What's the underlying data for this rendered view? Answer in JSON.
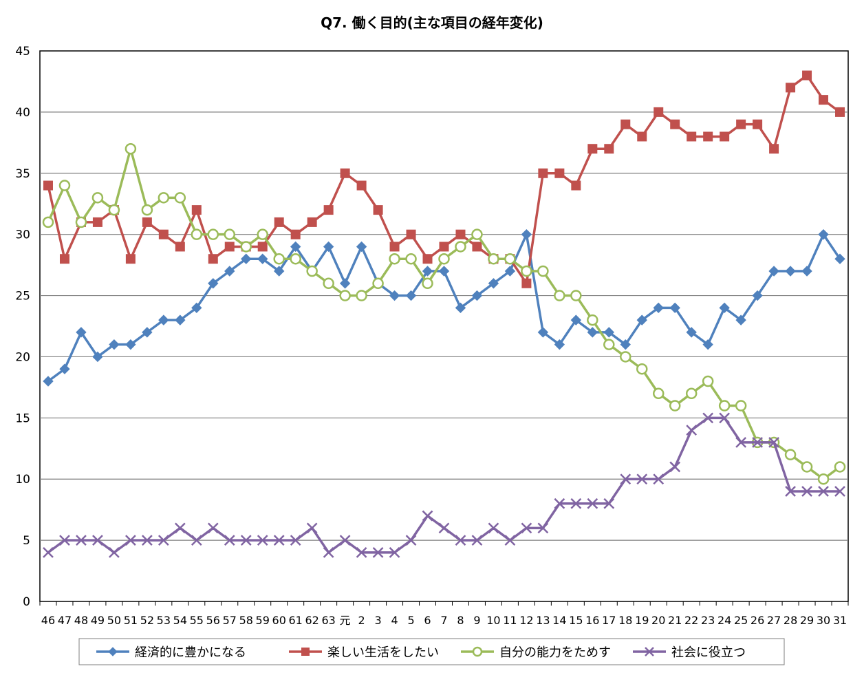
{
  "chart_data": {
    "type": "line",
    "title": "Q7. 働く目的(主な項目の経年変化)",
    "xlabel": "",
    "ylabel": "",
    "ylim": [
      0,
      45
    ],
    "yticks": [
      0,
      5,
      10,
      15,
      20,
      25,
      30,
      35,
      40,
      45
    ],
    "grid": true,
    "legend_position": "bottom",
    "categories": [
      "46",
      "47",
      "48",
      "49",
      "50",
      "51",
      "52",
      "53",
      "54",
      "55",
      "56",
      "57",
      "58",
      "59",
      "60",
      "61",
      "62",
      "63",
      "元",
      "2",
      "3",
      "4",
      "5",
      "6",
      "7",
      "8",
      "9",
      "10",
      "11",
      "12",
      "13",
      "14",
      "15",
      "16",
      "17",
      "18",
      "19",
      "20",
      "21",
      "22",
      "23",
      "24",
      "25",
      "26",
      "27",
      "28",
      "29",
      "30",
      "31"
    ],
    "series": [
      {
        "name": "経済的に豊かになる",
        "color": "#4f81bd",
        "marker": "diamond",
        "values": [
          18,
          19,
          22,
          20,
          21,
          21,
          22,
          23,
          23,
          24,
          26,
          27,
          28,
          28,
          27,
          29,
          27,
          29,
          26,
          29,
          26,
          25,
          25,
          27,
          27,
          24,
          25,
          26,
          27,
          30,
          22,
          21,
          23,
          22,
          22,
          21,
          23,
          24,
          24,
          22,
          21,
          24,
          23,
          25,
          27,
          27,
          27,
          30,
          28
        ]
      },
      {
        "name": "楽しい生活をしたい",
        "color": "#c0504d",
        "marker": "square",
        "values": [
          34,
          28,
          31,
          31,
          32,
          28,
          31,
          30,
          29,
          32,
          28,
          29,
          29,
          29,
          31,
          30,
          31,
          32,
          35,
          34,
          32,
          29,
          30,
          28,
          29,
          30,
          29,
          28,
          28,
          26,
          35,
          35,
          34,
          37,
          37,
          39,
          38,
          40,
          39,
          38,
          38,
          38,
          39,
          39,
          37,
          42,
          43,
          41,
          40
        ]
      },
      {
        "name": "自分の能力をためす",
        "color": "#9bbb59",
        "marker": "circle",
        "values": [
          31,
          34,
          31,
          33,
          32,
          37,
          32,
          33,
          33,
          30,
          30,
          30,
          29,
          30,
          28,
          28,
          27,
          26,
          25,
          25,
          26,
          28,
          28,
          26,
          28,
          29,
          30,
          28,
          28,
          27,
          27,
          25,
          25,
          23,
          21,
          20,
          19,
          17,
          16,
          17,
          18,
          16,
          16,
          13,
          13,
          12,
          11,
          10,
          11
        ]
      },
      {
        "name": "社会に役立つ",
        "color": "#8064a2",
        "marker": "x",
        "values": [
          4,
          5,
          5,
          5,
          4,
          5,
          5,
          5,
          6,
          5,
          6,
          5,
          5,
          5,
          5,
          5,
          6,
          4,
          5,
          4,
          4,
          4,
          5,
          7,
          6,
          5,
          5,
          6,
          5,
          6,
          6,
          8,
          8,
          8,
          8,
          10,
          10,
          10,
          11,
          14,
          15,
          15,
          13,
          13,
          13,
          9,
          9,
          9,
          9
        ]
      }
    ]
  }
}
